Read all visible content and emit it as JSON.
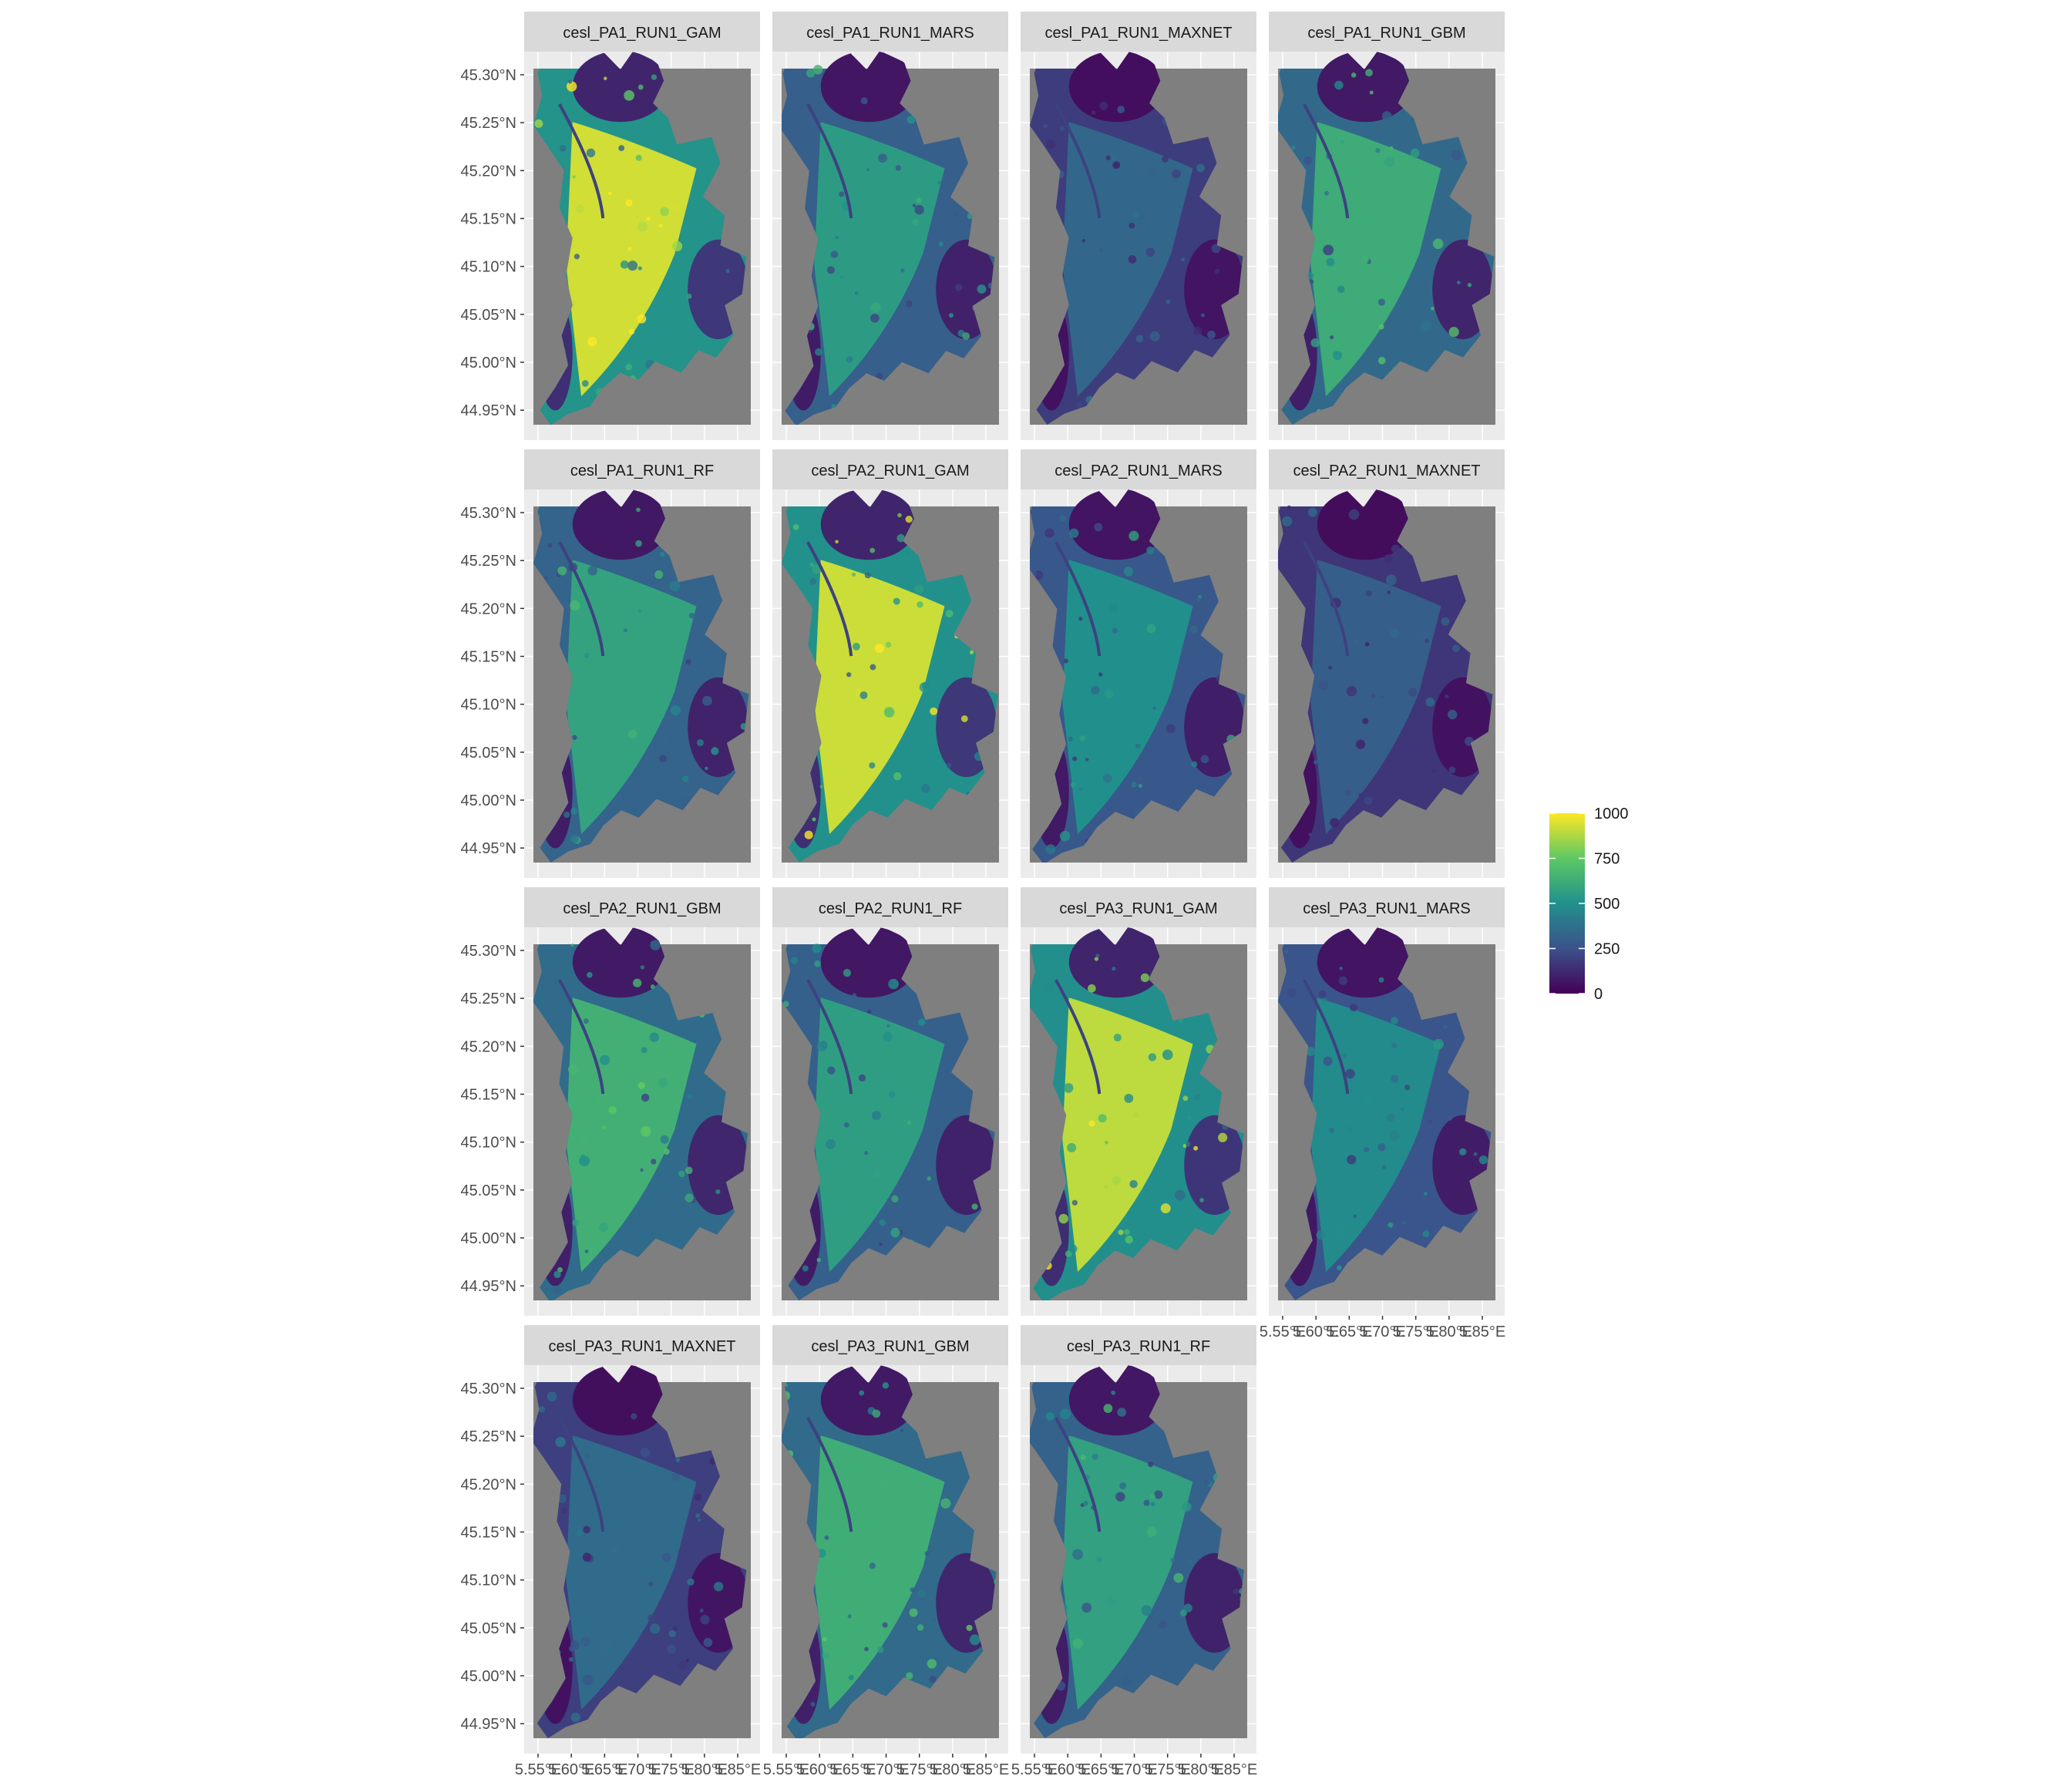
{
  "colors": {
    "viridis": [
      "#440154",
      "#3b528b",
      "#21908c",
      "#5dc863",
      "#fde725"
    ],
    "panel_bg": "#ebebeb",
    "strip_bg": "#d9d9d9",
    "raster_na": "#7f7f7f",
    "grid": "#ffffff"
  },
  "panels": [
    {
      "title": "cesl_PA1_RUN1_GAM",
      "level": 0.93
    },
    {
      "title": "cesl_PA1_RUN1_MARS",
      "level": 0.55
    },
    {
      "title": "cesl_PA1_RUN1_MAXNET",
      "level": 0.33
    },
    {
      "title": "cesl_PA1_RUN1_GBM",
      "level": 0.62
    },
    {
      "title": "cesl_PA1_RUN1_RF",
      "level": 0.58
    },
    {
      "title": "cesl_PA2_RUN1_GAM",
      "level": 0.92
    },
    {
      "title": "cesl_PA2_RUN1_MARS",
      "level": 0.5
    },
    {
      "title": "cesl_PA2_RUN1_MAXNET",
      "level": 0.3
    },
    {
      "title": "cesl_PA2_RUN1_GBM",
      "level": 0.64
    },
    {
      "title": "cesl_PA2_RUN1_RF",
      "level": 0.56
    },
    {
      "title": "cesl_PA3_RUN1_GAM",
      "level": 0.9
    },
    {
      "title": "cesl_PA3_RUN1_MARS",
      "level": 0.48
    },
    {
      "title": "cesl_PA3_RUN1_MAXNET",
      "level": 0.35
    },
    {
      "title": "cesl_PA3_RUN1_GBM",
      "level": 0.63
    },
    {
      "title": "cesl_PA3_RUN1_RF",
      "level": 0.57
    }
  ],
  "y_ticks": [
    "45.30°N",
    "45.25°N",
    "45.20°N",
    "45.15°N",
    "45.10°N",
    "45.05°N",
    "45.00°N",
    "44.95°N"
  ],
  "x_ticks": [
    "5.55°E",
    "5.60°E",
    "5.65°E",
    "5.70°E",
    "5.75°E",
    "5.80°E",
    "5.85°E"
  ],
  "legend": {
    "ticks": [
      "1000",
      "750",
      "500",
      "250",
      "0"
    ],
    "range": [
      0,
      1000
    ]
  }
}
